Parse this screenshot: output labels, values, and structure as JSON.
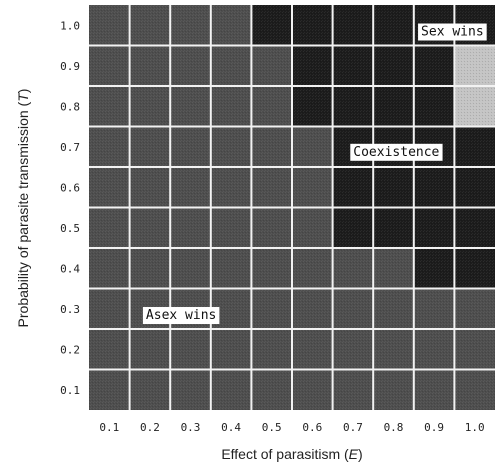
{
  "chart_data": {
    "type": "heatmap",
    "xlabel_prefix": "Effect of parasitism (",
    "xlabel_var": "E",
    "xlabel_suffix": ")",
    "ylabel_prefix": "Probability of parasite transmission (",
    "ylabel_var": "T",
    "ylabel_suffix": ")",
    "x": [
      "0.1",
      "0.2",
      "0.3",
      "0.4",
      "0.5",
      "0.6",
      "0.7",
      "0.8",
      "0.9",
      "1.0"
    ],
    "y": [
      "0.1",
      "0.2",
      "0.3",
      "0.4",
      "0.5",
      "0.6",
      "0.7",
      "0.8",
      "0.9",
      "1.0"
    ],
    "outcome_codes": {
      "0": "Asex wins",
      "1": "Coexistence",
      "2": "Sex wins"
    },
    "outcomes": [
      [
        0,
        0,
        0,
        0,
        0,
        0,
        0,
        0,
        0,
        0
      ],
      [
        0,
        0,
        0,
        0,
        0,
        0,
        0,
        0,
        0,
        0
      ],
      [
        0,
        0,
        0,
        0,
        0,
        0,
        0,
        0,
        0,
        0
      ],
      [
        0,
        0,
        0,
        0,
        0,
        0,
        0,
        0,
        1,
        1
      ],
      [
        0,
        0,
        0,
        0,
        0,
        0,
        1,
        1,
        1,
        1
      ],
      [
        0,
        0,
        0,
        0,
        0,
        0,
        1,
        1,
        1,
        1
      ],
      [
        0,
        0,
        0,
        0,
        0,
        0,
        1,
        1,
        1,
        1
      ],
      [
        0,
        0,
        0,
        0,
        0,
        1,
        1,
        1,
        1,
        2
      ],
      [
        0,
        0,
        0,
        0,
        0,
        1,
        1,
        1,
        1,
        2
      ],
      [
        0,
        0,
        0,
        0,
        1,
        1,
        1,
        1,
        1,
        1
      ]
    ],
    "colors": {
      "asex": "#4e4e4e",
      "coexistence": "#1c1c1c",
      "sex": "#c4c4c4",
      "grid": "#f2f2f2"
    },
    "labels": {
      "asex": "Asex wins",
      "coexistence": "Coexistence",
      "sex": "Sex wins"
    }
  }
}
